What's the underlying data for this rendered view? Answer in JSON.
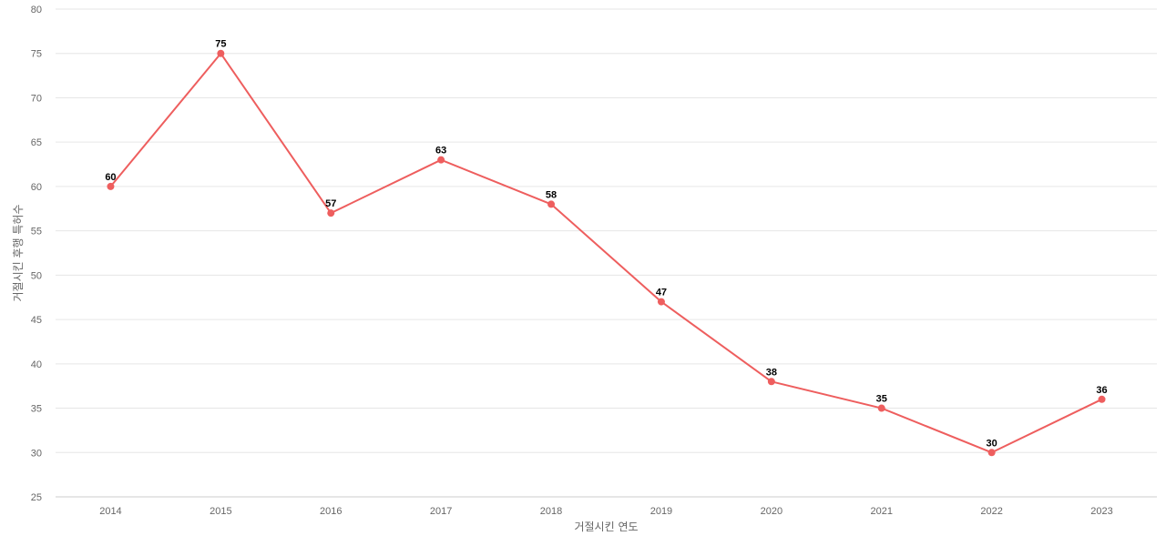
{
  "chart_data": {
    "type": "line",
    "title": "",
    "xlabel": "거절시킨 연도",
    "ylabel": "거절시킨 후행 특허수",
    "x": [
      "2014",
      "2015",
      "2016",
      "2017",
      "2018",
      "2019",
      "2020",
      "2021",
      "2022",
      "2023"
    ],
    "series": [
      {
        "values": [
          60,
          75,
          57,
          63,
          58,
          47,
          38,
          35,
          30,
          36
        ],
        "color": "#ee5e5e"
      }
    ],
    "ylim": [
      25,
      80
    ],
    "yticks": [
      25,
      30,
      35,
      40,
      45,
      50,
      55,
      60,
      65,
      70,
      75,
      80
    ],
    "grid": true,
    "data_labels": true
  }
}
